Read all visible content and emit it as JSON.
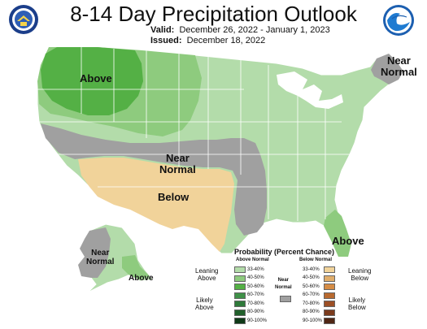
{
  "header": {
    "title": "8-14 Day Precipitation Outlook",
    "valid_label": "Valid:",
    "valid_dates": "December 26, 2022 - January 1, 2023",
    "issued_label": "Issued:",
    "issued_date": "December 18, 2022"
  },
  "map_labels": {
    "northwest": "Above",
    "northeast_line1": "Near",
    "northeast_line2": "Normal",
    "central_line1": "Near",
    "central_line2": "Normal",
    "southwest": "Below",
    "florida": "Above",
    "alaska_near_line1": "Near",
    "alaska_near_line2": "Normal",
    "alaska_above": "Above"
  },
  "legend": {
    "title": "Probability (Percent Chance)",
    "above_header": "Above Normal",
    "below_header": "Below Normal",
    "near_header_line1": "Near",
    "near_header_line2": "Normal",
    "leaning_above_line1": "Leaning",
    "leaning_above_line2": "Above",
    "likely_above_line1": "Likely",
    "likely_above_line2": "Above",
    "leaning_below_line1": "Leaning",
    "leaning_below_line2": "Below",
    "likely_below_line1": "Likely",
    "likely_below_line2": "Below",
    "ranges": [
      "33-40%",
      "40-50%",
      "50-60%",
      "60-70%",
      "70-80%",
      "80-90%",
      "90-100%"
    ],
    "above_colors": [
      "#b3dcaa",
      "#8ecb7e",
      "#54b045",
      "#3f9148",
      "#2f7a3a",
      "#21602b",
      "#0f3a18"
    ],
    "below_colors": [
      "#f1d39a",
      "#e0ad6b",
      "#d58c45",
      "#b8692f",
      "#9c4f25",
      "#7b3b1d",
      "#4f2614"
    ],
    "near_color": "#a0a0a0"
  },
  "colors": {
    "above_33_40": "#b3dcaa",
    "above_40_50": "#8ecb7e",
    "above_50_60": "#54b045",
    "below_33_40": "#f1d39a",
    "near_normal": "#a0a0a0",
    "outline": "#ffffff"
  },
  "logos": {
    "left": "department-of-commerce-seal",
    "right": "noaa-logo"
  }
}
